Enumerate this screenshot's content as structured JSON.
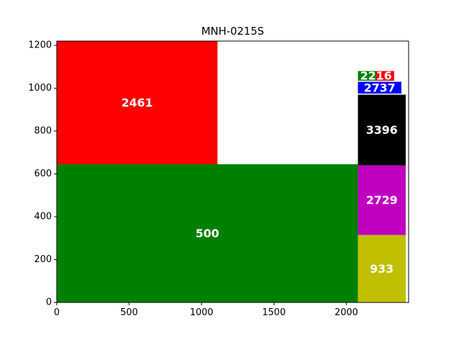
{
  "chart_data": {
    "type": "treemap",
    "title": "MNH-0215S",
    "xlabel": "",
    "ylabel": "",
    "xlim": [
      0,
      2430
    ],
    "ylim": [
      0,
      1220
    ],
    "xticks": [
      0,
      500,
      1000,
      1500,
      2000
    ],
    "yticks": [
      0,
      200,
      400,
      600,
      800,
      1000,
      1200
    ],
    "grid": false,
    "rects": [
      {
        "label": "500",
        "x0": 0,
        "x1": 2080,
        "y0": 0,
        "y1": 645,
        "color": "#008000"
      },
      {
        "label": "2461",
        "x0": 0,
        "x1": 1110,
        "y0": 645,
        "y1": 1220,
        "color": "#ff0000"
      },
      {
        "label": "933",
        "x0": 2080,
        "x1": 2410,
        "y0": 0,
        "y1": 315,
        "color": "#bfbf00"
      },
      {
        "label": "2729",
        "x0": 2080,
        "x1": 2410,
        "y0": 315,
        "y1": 640,
        "color": "#bf00bf"
      },
      {
        "label": "3396",
        "x0": 2080,
        "x1": 2410,
        "y0": 640,
        "y1": 970,
        "color": "#000000"
      },
      {
        "label": "2737",
        "x0": 2080,
        "x1": 2380,
        "y0": 975,
        "y1": 1030,
        "color": "#0000ff"
      },
      {
        "label": "2216",
        "x0": 2080,
        "x1": 2330,
        "y0": 1035,
        "y1": 1080,
        "color": "#008000",
        "color2": "#ff0000"
      }
    ]
  }
}
